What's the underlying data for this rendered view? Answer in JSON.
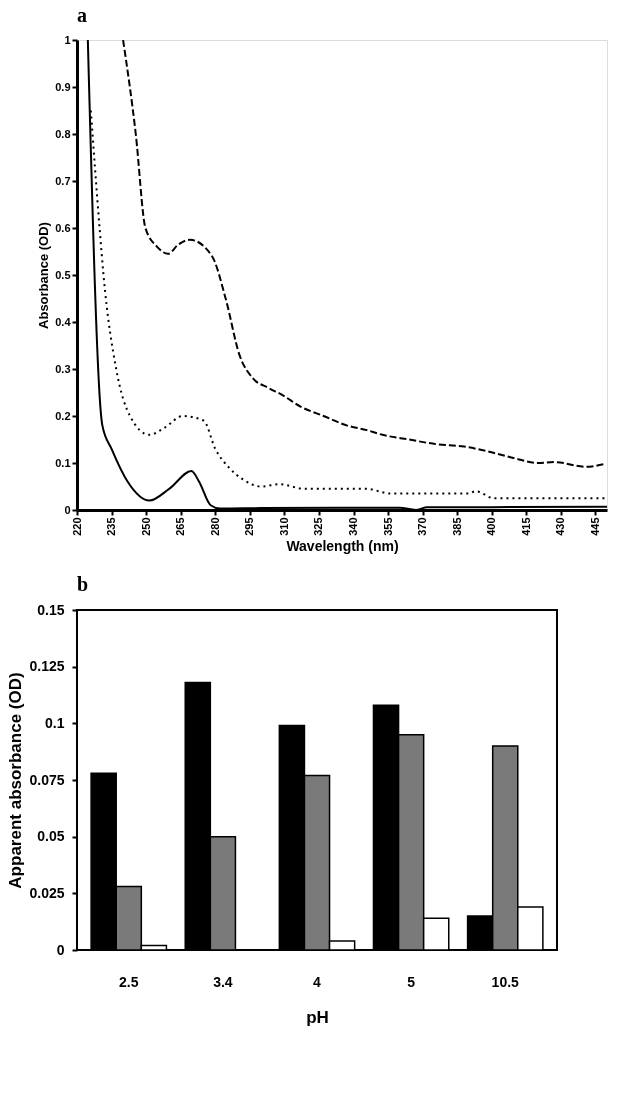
{
  "chart_data": [
    {
      "type": "line",
      "title": "a",
      "xlabel": "Wavelength (nm)",
      "ylabel": "Absorbance (OD)",
      "xlim": [
        220,
        450
      ],
      "ylim": [
        0,
        1
      ],
      "xticks": [
        220,
        235,
        250,
        265,
        280,
        295,
        310,
        325,
        340,
        355,
        370,
        385,
        400,
        415,
        430,
        445
      ],
      "yticks": [
        0,
        0.1,
        0.2,
        0.3,
        0.4,
        0.5,
        0.6,
        0.7,
        0.8,
        0.9,
        1
      ],
      "grid": false,
      "series": [
        {
          "color": "#000000",
          "line_style": "solid",
          "x": [
            224.7,
            231,
            235,
            242,
            251.4,
            260,
            269.7,
            273,
            278,
            282,
            300,
            350,
            360,
            367,
            372,
            400,
            450
          ],
          "values": [
            1,
            0.18,
            0.13,
            0.06,
            0.02,
            0.045,
            0.083,
            0.06,
            0.01,
            0.003,
            0.004,
            0.005,
            0.005,
            0.0,
            0.006,
            0.006,
            0.007
          ]
        },
        {
          "color": "#000000",
          "line_style": "dotted",
          "x": [
            226,
            229.8,
            231.5,
            237,
            243,
            251.4,
            258,
            265.9,
            275,
            280,
            286,
            292,
            300,
            308,
            318.5,
            345.7,
            356,
            390,
            393,
            401,
            450
          ],
          "values": [
            0.85,
            0.6,
            0.5,
            0.3,
            0.2,
            0.16,
            0.175,
            0.2,
            0.19,
            0.13,
            0.09,
            0.065,
            0.05,
            0.055,
            0.045,
            0.045,
            0.035,
            0.035,
            0.04,
            0.025,
            0.025
          ]
        },
        {
          "color": "#000000",
          "line_style": "dashed",
          "x": [
            240,
            245.5,
            249.7,
            254.8,
            259.5,
            264,
            269,
            278.6,
            284.5,
            290.5,
            296.4,
            303,
            309,
            317,
            327,
            337,
            345.7,
            352.5,
            364,
            376,
            388,
            398,
            410,
            420,
            427,
            441,
            449
          ],
          "values": [
            1,
            0.8,
            0.6,
            0.56,
            0.545,
            0.565,
            0.575,
            0.54,
            0.45,
            0.33,
            0.28,
            0.26,
            0.245,
            0.22,
            0.2,
            0.18,
            0.17,
            0.16,
            0.15,
            0.14,
            0.135,
            0.125,
            0.11,
            0.1,
            0.102,
            0.092,
            0.098
          ]
        }
      ]
    },
    {
      "type": "bar",
      "title": "b",
      "xlabel": "pH",
      "ylabel": "Apparent absorbance (OD)",
      "categories": [
        "2.5",
        "3.4",
        "4",
        "5",
        "10.5"
      ],
      "ylim": [
        0,
        0.15
      ],
      "yticks": [
        0,
        0.025,
        0.05,
        0.075,
        0.1,
        0.125,
        0.15
      ],
      "grid": false,
      "series": [
        {
          "color": "#000000",
          "values": [
            0.078,
            0.118,
            0.099,
            0.108,
            0.015
          ]
        },
        {
          "color": "#7a7a7a",
          "values": [
            0.028,
            0.05,
            0.077,
            0.095,
            0.09
          ]
        },
        {
          "color": "#ffffff",
          "values": [
            0.002,
            null,
            0.004,
            0.014,
            0.019
          ]
        }
      ]
    }
  ]
}
